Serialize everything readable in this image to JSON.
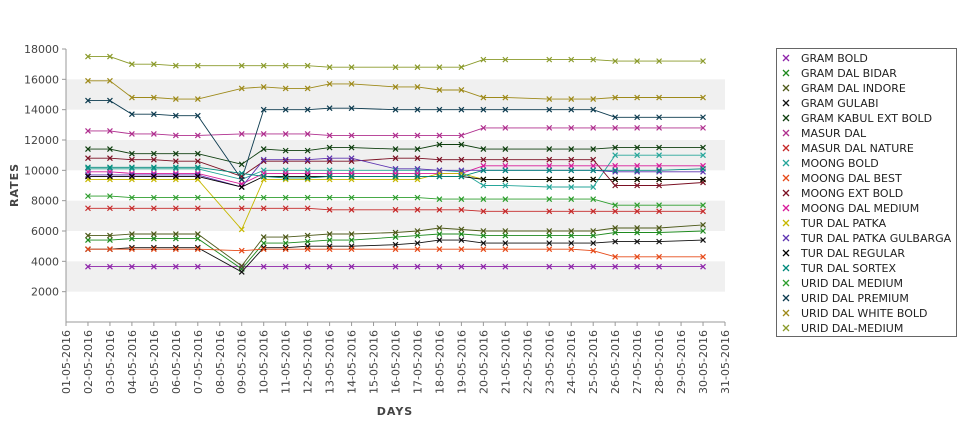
{
  "chart_data": {
    "type": "line",
    "xlabel": "DAYS",
    "ylabel": "RATES",
    "ylim": [
      0,
      18000
    ],
    "yticks": [
      2000,
      4000,
      6000,
      8000,
      10000,
      12000,
      14000,
      16000,
      18000
    ],
    "x": [
      "01-05-2016",
      "02-05-2016",
      "03-05-2016",
      "04-05-2016",
      "05-05-2016",
      "06-05-2016",
      "07-05-2016",
      "08-05-2016",
      "09-05-2016",
      "10-05-2016",
      "11-05-2016",
      "12-05-2016",
      "13-05-2016",
      "14-05-2016",
      "15-05-2016",
      "16-05-2016",
      "17-05-2016",
      "18-05-2016",
      "19-05-2016",
      "20-05-2016",
      "21-05-2016",
      "22-05-2016",
      "23-05-2016",
      "24-05-2016",
      "25-05-2016",
      "26-05-2016",
      "27-05-2016",
      "28-05-2016",
      "29-05-2016",
      "30-05-2016",
      "31-05-2016"
    ],
    "grid": "horizontal-bands",
    "legend_position": "right",
    "series": [
      {
        "name": "GRAM BOLD",
        "color": "#8e24aa",
        "values": {
          "2": 3650,
          "3": 3650,
          "4": 3650,
          "5": 3650,
          "6": 3650,
          "7": 3650,
          "9": 3650,
          "10": 3650,
          "11": 3650,
          "12": 3650,
          "13": 3650,
          "14": 3650,
          "16": 3650,
          "17": 3650,
          "18": 3650,
          "19": 3650,
          "20": 3650,
          "21": 3650,
          "23": 3650,
          "24": 3650,
          "25": 3650,
          "26": 3650,
          "27": 3650,
          "28": 3650,
          "30": 3650
        }
      },
      {
        "name": "GRAM DAL BIDAR",
        "color": "#1e8a1e",
        "values": {
          "2": 5400,
          "3": 5400,
          "4": 5500,
          "5": 5500,
          "6": 5500,
          "7": 5500,
          "9": 3500,
          "10": 5200,
          "11": 5200,
          "12": 5300,
          "13": 5400,
          "14": 5400,
          "16": 5600,
          "17": 5700,
          "18": 5800,
          "19": 5800,
          "20": 5700,
          "21": 5700,
          "23": 5700,
          "24": 5700,
          "25": 5700,
          "26": 5900,
          "27": 5900,
          "28": 5900,
          "30": 6000
        }
      },
      {
        "name": "GRAM DAL INDORE",
        "color": "#4e5a1a",
        "values": {
          "2": 5700,
          "3": 5700,
          "4": 5800,
          "5": 5800,
          "6": 5800,
          "7": 5800,
          "9": 3700,
          "10": 5600,
          "11": 5600,
          "12": 5700,
          "13": 5800,
          "14": 5800,
          "16": 5900,
          "17": 6000,
          "18": 6200,
          "19": 6100,
          "20": 6000,
          "21": 6000,
          "23": 6000,
          "24": 6000,
          "25": 6000,
          "26": 6200,
          "27": 6200,
          "28": 6200,
          "30": 6400
        }
      },
      {
        "name": "GRAM GULABI",
        "color": "#111111",
        "values": {
          "2": 4800,
          "3": 4800,
          "4": 4900,
          "5": 4900,
          "6": 4900,
          "7": 4900,
          "9": 3300,
          "10": 4900,
          "11": 4900,
          "12": 5000,
          "13": 5000,
          "14": 5000,
          "16": 5100,
          "17": 5200,
          "18": 5400,
          "19": 5400,
          "20": 5200,
          "21": 5200,
          "23": 5200,
          "24": 5200,
          "25": 5200,
          "26": 5300,
          "27": 5300,
          "28": 5300,
          "30": 5400
        }
      },
      {
        "name": "GRAM KABUL EXT BOLD",
        "color": "#0f3f0f",
        "values": {
          "2": 11400,
          "3": 11400,
          "4": 11100,
          "5": 11100,
          "6": 11100,
          "7": 11100,
          "9": 10400,
          "10": 11400,
          "11": 11300,
          "12": 11300,
          "13": 11500,
          "14": 11500,
          "16": 11400,
          "17": 11400,
          "18": 11700,
          "19": 11700,
          "20": 11400,
          "21": 11400,
          "23": 11400,
          "24": 11400,
          "25": 11400,
          "26": 11500,
          "27": 11500,
          "28": 11500,
          "30": 11500
        }
      },
      {
        "name": "MASUR DAL",
        "color": "#b0308f",
        "values": {
          "2": 12600,
          "3": 12600,
          "4": 12400,
          "5": 12400,
          "6": 12300,
          "7": 12300,
          "9": 12400,
          "10": 12400,
          "11": 12400,
          "12": 12400,
          "13": 12300,
          "14": 12300,
          "16": 12300,
          "17": 12300,
          "18": 12300,
          "19": 12300,
          "20": 12800,
          "21": 12800,
          "23": 12800,
          "24": 12800,
          "25": 12800,
          "26": 12800,
          "27": 12800,
          "28": 12800,
          "30": 12800
        }
      },
      {
        "name": "MASUR DAL NATURE",
        "color": "#c62828",
        "values": {
          "2": 7500,
          "3": 7500,
          "4": 7500,
          "5": 7500,
          "6": 7500,
          "7": 7500,
          "9": 7500,
          "10": 7500,
          "11": 7500,
          "12": 7500,
          "13": 7400,
          "14": 7400,
          "16": 7400,
          "17": 7400,
          "18": 7400,
          "19": 7400,
          "20": 7300,
          "21": 7300,
          "23": 7300,
          "24": 7300,
          "25": 7300,
          "26": 7300,
          "27": 7300,
          "28": 7300,
          "30": 7300
        }
      },
      {
        "name": "MOONG BOLD",
        "color": "#26a69a",
        "values": {
          "2": 10100,
          "3": 10100,
          "4": 10100,
          "5": 10100,
          "6": 10100,
          "7": 10100,
          "9": 9400,
          "10": 10000,
          "11": 10000,
          "12": 10000,
          "13": 10000,
          "14": 10000,
          "16": 10000,
          "17": 10000,
          "18": 10000,
          "19": 9900,
          "20": 9000,
          "21": 9000,
          "23": 8900,
          "24": 8900,
          "25": 8900,
          "26": 11000,
          "27": 11000,
          "28": 11000,
          "30": 11000
        }
      },
      {
        "name": "MOONG DAL BEST",
        "color": "#e64a19",
        "values": {
          "2": 4800,
          "3": 4800,
          "4": 4800,
          "5": 4800,
          "6": 4800,
          "7": 4800,
          "9": 4700,
          "10": 4800,
          "11": 4800,
          "12": 4800,
          "13": 4800,
          "14": 4800,
          "16": 4800,
          "17": 4800,
          "18": 4800,
          "19": 4800,
          "20": 4800,
          "21": 4800,
          "23": 4800,
          "24": 4800,
          "25": 4700,
          "26": 4300,
          "27": 4300,
          "28": 4300,
          "30": 4300
        }
      },
      {
        "name": "MOONG EXT BOLD",
        "color": "#7b1023",
        "values": {
          "2": 10800,
          "3": 10800,
          "4": 10700,
          "5": 10700,
          "6": 10600,
          "7": 10600,
          "9": 9600,
          "10": 10600,
          "11": 10600,
          "12": 10600,
          "13": 10600,
          "14": 10600,
          "16": 10800,
          "17": 10800,
          "18": 10700,
          "19": 10700,
          "20": 10700,
          "21": 10700,
          "23": 10700,
          "24": 10700,
          "25": 10700,
          "26": 9000,
          "27": 9000,
          "28": 9000,
          "30": 9200
        }
      },
      {
        "name": "MOONG DAL MEDIUM",
        "color": "#d81b9a",
        "values": {
          "2": 9900,
          "3": 9900,
          "4": 9800,
          "5": 9800,
          "6": 9800,
          "7": 9800,
          "9": 9100,
          "10": 9800,
          "11": 9800,
          "12": 9800,
          "13": 9800,
          "14": 9800,
          "16": 9800,
          "17": 9800,
          "18": 9800,
          "19": 9800,
          "20": 10300,
          "21": 10300,
          "23": 10300,
          "24": 10300,
          "25": 10300,
          "26": 10300,
          "27": 10300,
          "28": 10300,
          "30": 10300
        }
      },
      {
        "name": "TUR DAL PATKA",
        "color": "#c6b800",
        "values": {
          "2": 9400,
          "3": 9400,
          "4": 9400,
          "5": 9400,
          "6": 9400,
          "7": 9400,
          "9": 6100,
          "10": 9400,
          "11": 9400,
          "12": 9400,
          "13": 9400,
          "14": 9400,
          "16": 9400,
          "17": 9400,
          "18": 9800,
          "19": 9800,
          "20": 9400,
          "21": 9400,
          "23": 9400,
          "24": 9400,
          "25": 9400,
          "26": 9400,
          "27": 9400,
          "28": 9400,
          "30": 9400
        }
      },
      {
        "name": "TUR DAL PATKA GULBARGA",
        "color": "#5e35b1",
        "values": {
          "2": 9700,
          "3": 9700,
          "4": 9700,
          "5": 9700,
          "6": 9700,
          "7": 9700,
          "9": 8900,
          "10": 10700,
          "11": 10700,
          "12": 10700,
          "13": 10800,
          "14": 10800,
          "16": 10100,
          "17": 10100,
          "18": 10000,
          "19": 10000,
          "20": 10000,
          "21": 10000,
          "23": 10000,
          "24": 10000,
          "25": 10000,
          "26": 9900,
          "27": 9900,
          "28": 9900,
          "30": 9900
        }
      },
      {
        "name": "TUR DAL REGULAR",
        "color": "#000000",
        "values": {
          "2": 9600,
          "3": 9600,
          "4": 9600,
          "5": 9600,
          "6": 9600,
          "7": 9600,
          "9": 8900,
          "10": 9600,
          "11": 9600,
          "12": 9600,
          "13": 9600,
          "14": 9600,
          "16": 9600,
          "17": 9600,
          "18": 9600,
          "19": 9600,
          "20": 9400,
          "21": 9400,
          "23": 9400,
          "24": 9400,
          "25": 9400,
          "26": 9400,
          "27": 9400,
          "28": 9400,
          "30": 9400
        }
      },
      {
        "name": "TUR DAL SORTEX",
        "color": "#00897b",
        "values": {
          "2": 10200,
          "3": 10200,
          "4": 10200,
          "5": 10200,
          "6": 10200,
          "7": 10200,
          "9": 9800,
          "10": 9600,
          "11": 9500,
          "12": 9500,
          "13": 9600,
          "14": 9600,
          "16": 9600,
          "17": 9600,
          "18": 9600,
          "19": 9600,
          "20": 10000,
          "21": 10000,
          "23": 10000,
          "24": 10000,
          "25": 10000,
          "26": 10000,
          "27": 10000,
          "28": 10000,
          "30": 10100
        }
      },
      {
        "name": "URID DAL MEDIUM",
        "color": "#2e9e2e",
        "values": {
          "2": 8300,
          "3": 8300,
          "4": 8200,
          "5": 8200,
          "6": 8200,
          "7": 8200,
          "9": 8200,
          "10": 8200,
          "11": 8200,
          "12": 8200,
          "13": 8200,
          "14": 8200,
          "16": 8200,
          "17": 8200,
          "18": 8100,
          "19": 8100,
          "20": 8100,
          "21": 8100,
          "23": 8100,
          "24": 8100,
          "25": 8100,
          "26": 7700,
          "27": 7700,
          "28": 7700,
          "30": 7700
        }
      },
      {
        "name": "URID DAL PREMIUM",
        "color": "#0d3b4f",
        "values": {
          "2": 14600,
          "3": 14600,
          "4": 13700,
          "5": 13700,
          "6": 13600,
          "7": 13600,
          "9": 9400,
          "10": 14000,
          "11": 14000,
          "12": 14000,
          "13": 14100,
          "14": 14100,
          "16": 14000,
          "17": 14000,
          "18": 14000,
          "19": 14000,
          "20": 14000,
          "21": 14000,
          "23": 14000,
          "24": 14000,
          "25": 14000,
          "26": 13500,
          "27": 13500,
          "28": 13500,
          "30": 13500
        }
      },
      {
        "name": "URID DAL WHITE BOLD",
        "color": "#9e8a1a",
        "values": {
          "2": 15900,
          "3": 15900,
          "4": 14800,
          "5": 14800,
          "6": 14700,
          "7": 14700,
          "9": 15400,
          "10": 15500,
          "11": 15400,
          "12": 15400,
          "13": 15700,
          "14": 15700,
          "16": 15500,
          "17": 15500,
          "18": 15300,
          "19": 15300,
          "20": 14800,
          "21": 14800,
          "23": 14700,
          "24": 14700,
          "25": 14700,
          "26": 14800,
          "27": 14800,
          "28": 14800,
          "30": 14800
        }
      },
      {
        "name": "URID DAL-MEDIUM",
        "color": "#8a9a2a",
        "values": {
          "2": 17500,
          "3": 17500,
          "4": 17000,
          "5": 17000,
          "6": 16900,
          "7": 16900,
          "9": 16900,
          "10": 16900,
          "11": 16900,
          "12": 16900,
          "13": 16800,
          "14": 16800,
          "16": 16800,
          "17": 16800,
          "18": 16800,
          "19": 16800,
          "20": 17300,
          "21": 17300,
          "23": 17300,
          "24": 17300,
          "25": 17300,
          "26": 17200,
          "27": 17200,
          "28": 17200,
          "30": 17200
        }
      }
    ]
  }
}
